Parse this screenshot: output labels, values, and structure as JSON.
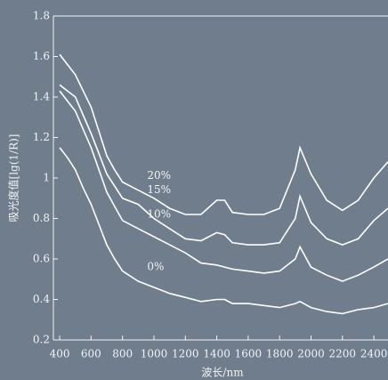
{
  "chart_data": {
    "type": "line",
    "y_label": "吸光度值[lg(1/R)]",
    "x_label": "波长/nm",
    "x": [
      400,
      450,
      500,
      550,
      600,
      650,
      700,
      750,
      800,
      900,
      1000,
      1100,
      1200,
      1300,
      1400,
      1450,
      1500,
      1600,
      1700,
      1800,
      1900,
      1930,
      2000,
      2100,
      2200,
      2300,
      2400,
      2490
    ],
    "series": [
      {
        "name": "20%",
        "color": "#ffffff",
        "values": [
          1.61,
          1.56,
          1.51,
          1.43,
          1.35,
          1.23,
          1.11,
          1.04,
          0.98,
          0.94,
          0.9,
          0.85,
          0.82,
          0.82,
          0.89,
          0.89,
          0.83,
          0.82,
          0.82,
          0.85,
          1.04,
          1.15,
          1.02,
          0.89,
          0.84,
          0.89,
          1.0,
          1.08
        ]
      },
      {
        "name": "15%",
        "color": "#ffffff",
        "values": [
          1.46,
          1.43,
          1.4,
          1.31,
          1.22,
          1.12,
          1.02,
          0.96,
          0.9,
          0.87,
          0.8,
          0.75,
          0.7,
          0.69,
          0.73,
          0.72,
          0.68,
          0.67,
          0.67,
          0.68,
          0.8,
          0.91,
          0.78,
          0.7,
          0.67,
          0.7,
          0.79,
          0.85
        ]
      },
      {
        "name": "10%",
        "color": "#ffffff",
        "values": [
          1.43,
          1.38,
          1.33,
          1.24,
          1.15,
          1.04,
          0.93,
          0.86,
          0.79,
          0.75,
          0.71,
          0.67,
          0.63,
          0.58,
          0.57,
          0.56,
          0.55,
          0.54,
          0.53,
          0.54,
          0.6,
          0.66,
          0.56,
          0.52,
          0.49,
          0.52,
          0.56,
          0.6
        ]
      },
      {
        "name": "0%",
        "color": "#ffffff",
        "values": [
          1.15,
          1.1,
          1.04,
          0.95,
          0.87,
          0.77,
          0.67,
          0.6,
          0.54,
          0.49,
          0.46,
          0.43,
          0.41,
          0.39,
          0.4,
          0.4,
          0.38,
          0.38,
          0.37,
          0.36,
          0.38,
          0.39,
          0.36,
          0.34,
          0.33,
          0.35,
          0.36,
          0.38
        ]
      }
    ],
    "xlim": [
      360,
      2490
    ],
    "xticks": [
      400,
      600,
      800,
      1000,
      1200,
      1400,
      1600,
      1800,
      2000,
      2200,
      2400
    ],
    "ylim": [
      0.2,
      1.8
    ],
    "yticks": [
      0.2,
      0.4,
      0.6,
      0.8,
      1,
      1.2,
      1.4,
      1.6,
      1.8
    ]
  }
}
